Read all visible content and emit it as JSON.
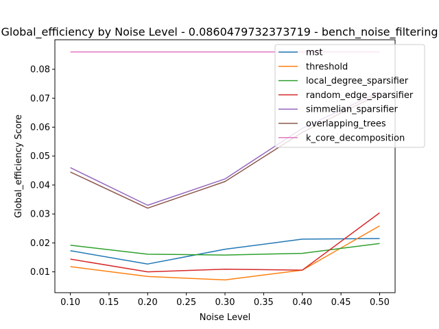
{
  "chart_data": {
    "type": "line",
    "title": "Global_efficiency by Noise Level - 0.0860479732373719 - bench_noise_filtering",
    "xlabel": "Noise Level",
    "ylabel": "Global_efficiency Score",
    "xlim": [
      0.08,
      0.52
    ],
    "ylim": [
      0.0028,
      0.0902
    ],
    "x": [
      0.1,
      0.2,
      0.3,
      0.4,
      0.5
    ],
    "x_ticks": [
      0.1,
      0.15,
      0.2,
      0.25,
      0.3,
      0.35,
      0.4,
      0.45,
      0.5
    ],
    "x_tick_labels": [
      "0.10",
      "0.15",
      "0.20",
      "0.25",
      "0.30",
      "0.35",
      "0.40",
      "0.45",
      "0.50"
    ],
    "y_ticks": [
      0.01,
      0.02,
      0.03,
      0.04,
      0.05,
      0.06,
      0.07,
      0.08
    ],
    "y_tick_labels": [
      "0.01",
      "0.02",
      "0.03",
      "0.04",
      "0.05",
      "0.06",
      "0.07",
      "0.08"
    ],
    "grid": false,
    "legend_position": "top-right",
    "series": [
      {
        "name": "mst",
        "color": "#1f77b4",
        "values": [
          0.0173,
          0.0127,
          0.0178,
          0.0213,
          0.0215
        ]
      },
      {
        "name": "threshold",
        "color": "#ff7f0e",
        "values": [
          0.0118,
          0.0084,
          0.0072,
          0.0106,
          0.0259
        ]
      },
      {
        "name": "local_degree_sparsifier",
        "color": "#2ca02c",
        "values": [
          0.0192,
          0.0161,
          0.0158,
          0.0164,
          0.0198
        ]
      },
      {
        "name": "random_edge_sparsifier",
        "color": "#d62728",
        "values": [
          0.0144,
          0.01,
          0.0109,
          0.0106,
          0.0304
        ]
      },
      {
        "name": "simmelian_sparsifier",
        "color": "#9467bd",
        "values": [
          0.046,
          0.033,
          0.0421,
          0.0596,
          0.0722
        ]
      },
      {
        "name": "overlapping_trees",
        "color": "#8c564b",
        "values": [
          0.0445,
          0.032,
          0.0412,
          0.0582,
          0.0715
        ]
      },
      {
        "name": "k_core_decomposition",
        "color": "#e377c2",
        "values": [
          0.086,
          0.086,
          0.086,
          0.086,
          0.086
        ]
      }
    ]
  }
}
